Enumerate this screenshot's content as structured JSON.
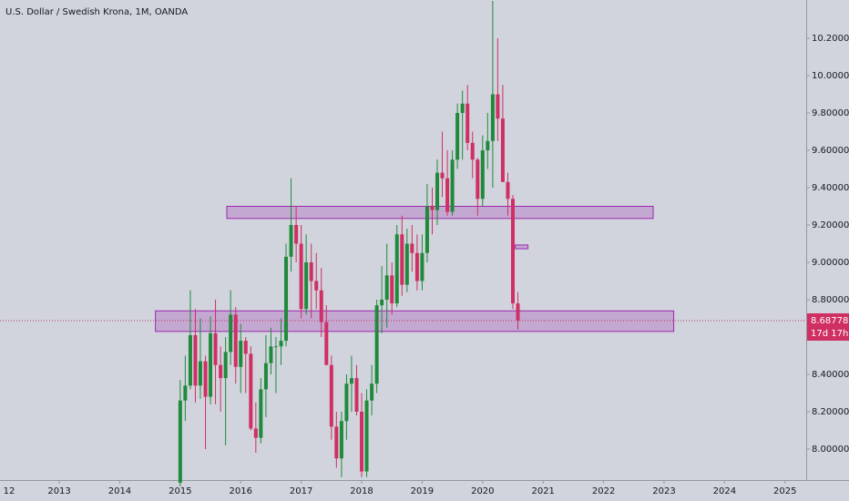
{
  "chart_data": {
    "type": "candlestick",
    "title": "U.S. Dollar / Swedish Krona, 1M, OANDA",
    "up_color": "#1f8a3c",
    "down_color": "#cf2f63",
    "background": "#d1d4dc",
    "zone_color": "#9c27b0",
    "x": [
      2015,
      2015.083,
      2015.167,
      2015.25,
      2015.333,
      2015.417,
      2015.5,
      2015.583,
      2015.667,
      2015.75,
      2015.833,
      2015.917,
      2016,
      2016.083,
      2016.167,
      2016.25,
      2016.333,
      2016.417,
      2016.5,
      2016.583,
      2016.667,
      2016.75,
      2016.833,
      2016.917,
      2017,
      2017.083,
      2017.167,
      2017.25,
      2017.333,
      2017.417,
      2017.5,
      2017.583,
      2017.667,
      2017.75,
      2017.833,
      2017.917,
      2018,
      2018.083,
      2018.167,
      2018.25,
      2018.333,
      2018.417,
      2018.5,
      2018.583,
      2018.667,
      2018.75,
      2018.833,
      2018.917,
      2019,
      2019.083,
      2019.167,
      2019.25,
      2019.333,
      2019.417,
      2019.5,
      2019.583,
      2019.667,
      2019.75,
      2019.833,
      2019.917,
      2020,
      2020.083,
      2020.167,
      2020.25,
      2020.333,
      2020.417,
      2020.5,
      2020.583
    ],
    "open": [
      7.82,
      8.26,
      8.34,
      8.61,
      8.34,
      8.47,
      8.28,
      8.62,
      8.45,
      8.38,
      8.52,
      8.72,
      8.44,
      8.58,
      8.51,
      8.11,
      8.06,
      8.32,
      8.46,
      8.55,
      8.55,
      8.58,
      9.03,
      9.2,
      9.1,
      8.75,
      9.0,
      8.9,
      8.85,
      8.68,
      8.45,
      8.12,
      7.95,
      8.15,
      8.35,
      8.38,
      8.2,
      7.88,
      8.26,
      8.35,
      8.77,
      8.8,
      8.93,
      8.78,
      9.15,
      8.88,
      9.1,
      9.05,
      8.9,
      9.05,
      9.3,
      9.28,
      9.48,
      9.45,
      9.27,
      9.55,
      9.8,
      9.85,
      9.64,
      9.55,
      9.34,
      9.6,
      9.65,
      9.9,
      9.77,
      9.43,
      9.34,
      8.78
    ],
    "high": [
      8.37,
      8.5,
      8.85,
      8.75,
      8.7,
      8.5,
      8.71,
      8.8,
      8.55,
      8.6,
      8.85,
      8.76,
      8.67,
      8.6,
      8.55,
      8.25,
      8.38,
      8.61,
      8.65,
      8.6,
      8.7,
      9.1,
      9.45,
      9.3,
      9.2,
      9.15,
      9.1,
      9.05,
      8.97,
      8.77,
      8.5,
      8.2,
      8.2,
      8.4,
      8.5,
      8.45,
      8.3,
      8.32,
      8.45,
      8.8,
      8.98,
      9.1,
      9.0,
      9.2,
      9.25,
      9.18,
      9.2,
      9.15,
      9.15,
      9.42,
      9.4,
      9.55,
      9.7,
      9.6,
      9.6,
      9.85,
      9.92,
      9.95,
      9.7,
      9.56,
      9.68,
      9.8,
      10.4,
      10.2,
      9.95,
      9.48,
      9.36,
      8.84
    ],
    "low": [
      7.8,
      8.15,
      8.32,
      8.25,
      8.27,
      8.0,
      8.24,
      8.24,
      8.2,
      8.02,
      8.45,
      8.35,
      8.3,
      8.3,
      8.1,
      7.98,
      8.03,
      8.17,
      8.4,
      8.3,
      8.45,
      8.55,
      8.95,
      9.0,
      8.7,
      8.72,
      8.7,
      8.75,
      8.6,
      8.45,
      8.05,
      7.9,
      7.85,
      8.05,
      8.2,
      8.18,
      7.85,
      7.85,
      8.18,
      8.3,
      8.62,
      8.65,
      8.72,
      8.76,
      8.82,
      8.84,
      8.95,
      8.85,
      8.85,
      9.0,
      9.15,
      9.2,
      9.35,
      9.25,
      9.25,
      9.5,
      9.55,
      9.6,
      9.45,
      9.25,
      9.3,
      9.5,
      9.4,
      9.65,
      9.45,
      9.25,
      8.75,
      8.64
    ],
    "close": [
      8.26,
      8.34,
      8.61,
      8.34,
      8.47,
      8.28,
      8.62,
      8.45,
      8.38,
      8.52,
      8.72,
      8.44,
      8.58,
      8.51,
      8.11,
      8.06,
      8.32,
      8.46,
      8.55,
      8.55,
      8.58,
      9.03,
      9.2,
      9.1,
      8.75,
      9.0,
      8.9,
      8.85,
      8.68,
      8.45,
      8.12,
      7.95,
      8.15,
      8.35,
      8.38,
      8.2,
      7.88,
      8.26,
      8.35,
      8.77,
      8.8,
      8.93,
      8.78,
      9.15,
      8.88,
      9.1,
      9.05,
      8.9,
      9.05,
      9.3,
      9.28,
      9.48,
      9.45,
      9.27,
      9.55,
      9.8,
      9.85,
      9.64,
      9.55,
      9.34,
      9.6,
      9.65,
      9.9,
      9.77,
      9.43,
      9.34,
      8.78,
      8.69
    ],
    "zones": [
      {
        "x": [
          2015.77,
          2022.82
        ],
        "y": [
          9.235,
          9.3
        ]
      },
      {
        "x": [
          2014.59,
          2023.16
        ],
        "y": [
          8.63,
          8.74
        ]
      },
      {
        "x": [
          2020.54,
          2020.75
        ],
        "y": [
          9.073,
          9.093
        ]
      }
    ],
    "last_price": {
      "value": 8.68778,
      "label": "8.68778"
    },
    "countdown": "17d 17h",
    "xlim": [
      2012.02,
      2025.35
    ],
    "ylim": [
      7.834,
      10.405
    ],
    "xticks": [
      {
        "value": 2012,
        "label": "12"
      },
      2013,
      2014,
      2015,
      2016,
      2017,
      2018,
      2019,
      2020,
      2021,
      2022,
      2023,
      2024,
      2025
    ],
    "yticks": [
      {
        "value": 8.0,
        "label": "8.00000"
      },
      {
        "value": 8.2,
        "label": "8.20000"
      },
      {
        "value": 8.4,
        "label": "8.40000"
      },
      {
        "value": 8.6,
        "label": "8.60000"
      },
      {
        "value": 8.8,
        "label": "8.80000"
      },
      {
        "value": 9.0,
        "label": "9.00000"
      },
      {
        "value": 9.2,
        "label": "9.20000"
      },
      {
        "value": 9.4,
        "label": "9.40000"
      },
      {
        "value": 9.6,
        "label": "9.60000"
      },
      {
        "value": 9.8,
        "label": "9.80000"
      },
      {
        "value": 10.0,
        "label": "10.00000"
      },
      {
        "value": 10.2,
        "label": "10.20000"
      }
    ]
  }
}
